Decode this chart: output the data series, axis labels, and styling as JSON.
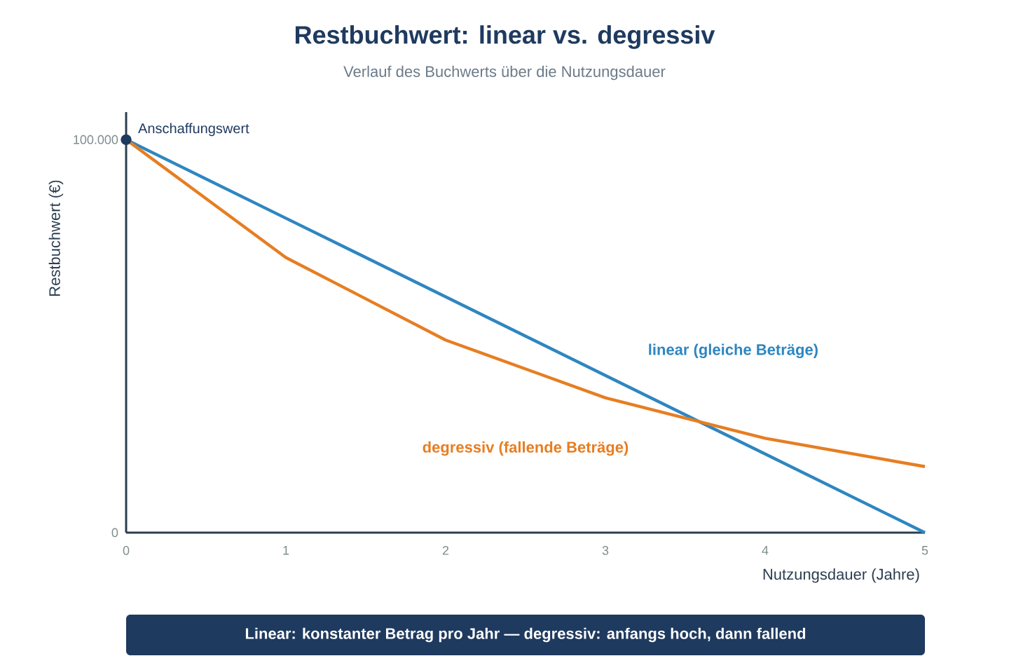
{
  "chart_data": {
    "type": "line",
    "title": "Restbuchwert: linear vs. degressiv",
    "subtitle": "Verlauf des Buchwerts über die Nutzungsdauer",
    "xlabel": "Nutzungsdauer (Jahre)",
    "ylabel": "Restbuchwert (€)",
    "x": [
      0,
      1,
      2,
      3,
      4,
      5
    ],
    "series": [
      {
        "name": "linear (gleiche Beträge)",
        "color": "#2e86c1",
        "values": [
          100000,
          80000,
          60000,
          40000,
          20000,
          0
        ]
      },
      {
        "name": "degressiv (fallende Beträge)",
        "color": "#e67e22",
        "values": [
          100000,
          70000,
          49000,
          34300,
          24000,
          16800
        ]
      }
    ],
    "xlim": [
      0,
      5
    ],
    "xticks": [
      0,
      1,
      2,
      3,
      4,
      5
    ],
    "ylim": [
      0,
      107000
    ],
    "yticks": [
      {
        "value": 0,
        "label": "0"
      },
      {
        "value": 100000,
        "label": "100.000"
      }
    ],
    "grid": false,
    "marker": "none",
    "line_style": "solid",
    "annotations": [
      {
        "text": "Anschaffungswert",
        "x": 0,
        "y": 100000
      },
      "Linear: konstanter Betrag pro Jahr — degressiv: anfangs hoch, dann fallend"
    ]
  }
}
